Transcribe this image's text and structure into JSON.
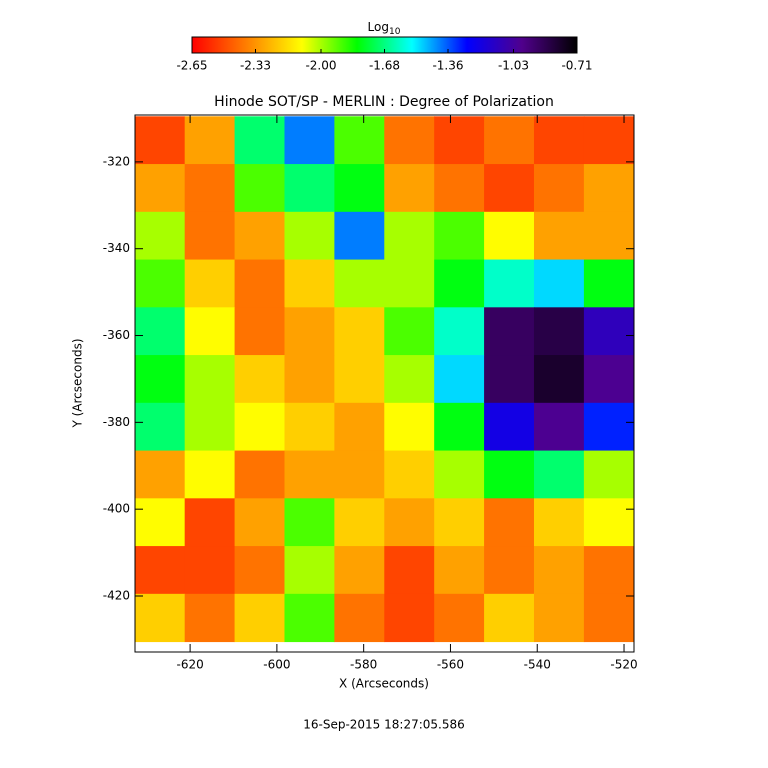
{
  "chart_data": {
    "type": "heatmap",
    "title": "Hinode SOT/SP - MERLIN : Degree of Polarization",
    "x_label": "X (Arcseconds)",
    "y_label": "Y (Arcseconds)",
    "footer": "16-Sep-2015 18:27:05.586",
    "colorbar_label": "Log",
    "colorbar_label_sub": "10",
    "colormap": [
      "#ff0000",
      "#ff8000",
      "#ffff00",
      "#00ff00",
      "#00ffff",
      "#0000ff",
      "#50008c",
      "#000000"
    ],
    "zlim": [
      -2.65,
      -0.71
    ],
    "zticks": [
      {
        "value": -2.65,
        "label": "-2.65"
      },
      {
        "value": -2.33,
        "label": "-2.33"
      },
      {
        "value": -2.0,
        "label": "-2.00"
      },
      {
        "value": -1.68,
        "label": "-1.68"
      },
      {
        "value": -1.36,
        "label": "-1.36"
      },
      {
        "value": -1.03,
        "label": "-1.03"
      },
      {
        "value": -0.71,
        "label": "-0.71"
      }
    ],
    "xlim": [
      -632.7,
      -517.7
    ],
    "ylim": [
      -432.9,
      -309.2
    ],
    "xticks": [
      -620,
      -600,
      -580,
      -560,
      -540,
      -520
    ],
    "yticks": [
      -320,
      -340,
      -360,
      -380,
      -400,
      -420
    ],
    "x": [
      -627,
      -615.5,
      -604,
      -592.5,
      -581,
      -569.5,
      -558,
      -546.5,
      -535,
      -523.5
    ],
    "y": [
      -315,
      -326,
      -337,
      -348,
      -359,
      -370,
      -381,
      -392,
      -403,
      -414,
      -425
    ],
    "z": [
      [
        -2.5,
        -2.3,
        -1.7,
        -1.4,
        -1.9,
        -2.4,
        -2.5,
        -2.4,
        -2.5,
        -2.5
      ],
      [
        -2.3,
        -2.4,
        -1.9,
        -1.7,
        -1.8,
        -2.3,
        -2.4,
        -2.5,
        -2.4,
        -2.3
      ],
      [
        -2.0,
        -2.4,
        -2.3,
        -2.0,
        -1.4,
        -2.0,
        -1.9,
        -2.1,
        -2.3,
        -2.3
      ],
      [
        -1.9,
        -2.2,
        -2.4,
        -2.2,
        -2.0,
        -2.0,
        -1.8,
        -1.6,
        -1.5,
        -1.8
      ],
      [
        -1.7,
        -2.1,
        -2.4,
        -2.3,
        -2.2,
        -1.9,
        -1.6,
        -0.9,
        -0.85,
        -1.1
      ],
      [
        -1.8,
        -2.0,
        -2.2,
        -2.3,
        -2.2,
        -2.0,
        -1.5,
        -0.9,
        -0.8,
        -1.0
      ],
      [
        -1.7,
        -2.0,
        -2.1,
        -2.2,
        -2.3,
        -2.1,
        -1.8,
        -1.2,
        -1.0,
        -1.3
      ],
      [
        -2.3,
        -2.1,
        -2.4,
        -2.3,
        -2.3,
        -2.2,
        -2.0,
        -1.8,
        -1.7,
        -2.0
      ],
      [
        -2.1,
        -2.5,
        -2.3,
        -1.9,
        -2.2,
        -2.3,
        -2.2,
        -2.4,
        -2.2,
        -2.1
      ],
      [
        -2.5,
        -2.5,
        -2.4,
        -2.0,
        -2.3,
        -2.5,
        -2.3,
        -2.4,
        -2.3,
        -2.4
      ],
      [
        -2.2,
        -2.4,
        -2.2,
        -1.9,
        -2.4,
        -2.5,
        -2.4,
        -2.2,
        -2.3,
        -2.4
      ]
    ]
  }
}
